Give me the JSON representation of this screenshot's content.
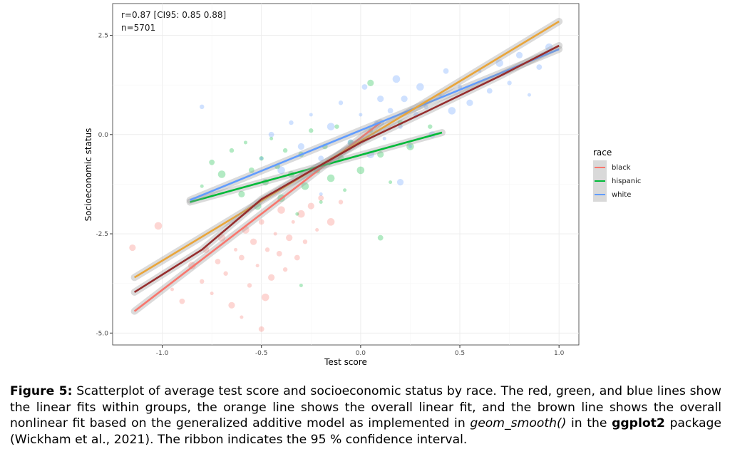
{
  "chart_data": {
    "type": "scatter",
    "xlabel": "Test score",
    "ylabel": "Socioeconomic status",
    "xlim": [
      -1.25,
      1.1
    ],
    "ylim": [
      -5.3,
      3.3
    ],
    "xticks": [
      -1.0,
      -0.5,
      0.0,
      0.5,
      1.0
    ],
    "xtick_labels": [
      "-1.0",
      "-0.5",
      "0.0",
      "0.5",
      "1.0"
    ],
    "yticks": [
      -5.0,
      -2.5,
      0.0,
      2.5
    ],
    "ytick_labels": [
      "-5.0",
      "-2.5",
      "0.0",
      "2.5"
    ],
    "grid": true,
    "annotation": [
      "r=0.87 [CI95: 0.85 0.88]",
      "n=5701"
    ],
    "legend": {
      "title": "race",
      "placement": "right",
      "entries": [
        "black",
        "hispanic",
        "white"
      ]
    },
    "series": [
      {
        "name": "black",
        "color": "#F8766D",
        "points": [
          [
            -0.95,
            -3.9
          ],
          [
            -0.9,
            -4.2
          ],
          [
            -0.85,
            -3.3
          ],
          [
            -0.8,
            -3.7
          ],
          [
            -0.78,
            -2.9
          ],
          [
            -0.75,
            -4.0
          ],
          [
            -0.72,
            -3.2
          ],
          [
            -0.7,
            -2.6
          ],
          [
            -0.68,
            -3.5
          ],
          [
            -0.65,
            -4.3
          ],
          [
            -0.63,
            -2.9
          ],
          [
            -0.6,
            -3.1
          ],
          [
            -0.58,
            -2.4
          ],
          [
            -0.56,
            -3.8
          ],
          [
            -0.54,
            -2.7
          ],
          [
            -0.52,
            -3.3
          ],
          [
            -0.5,
            -2.2
          ],
          [
            -0.48,
            -4.1
          ],
          [
            -0.47,
            -2.9
          ],
          [
            -0.45,
            -3.6
          ],
          [
            -0.43,
            -2.5
          ],
          [
            -0.41,
            -3.0
          ],
          [
            -0.4,
            -1.9
          ],
          [
            -0.38,
            -3.4
          ],
          [
            -0.36,
            -2.6
          ],
          [
            -0.34,
            -2.2
          ],
          [
            -0.32,
            -3.1
          ],
          [
            -0.3,
            -2.0
          ],
          [
            -0.28,
            -2.7
          ],
          [
            -0.25,
            -1.8
          ],
          [
            -0.22,
            -2.4
          ],
          [
            -0.2,
            -1.6
          ],
          [
            -0.15,
            -2.2
          ],
          [
            -0.1,
            -1.7
          ],
          [
            -1.15,
            -2.85
          ],
          [
            -0.6,
            -4.6
          ],
          [
            -0.5,
            -4.9
          ],
          [
            -1.02,
            -2.3
          ]
        ],
        "fit": [
          [
            -1.14,
            -4.45
          ],
          [
            0.1,
            0.3
          ]
        ]
      },
      {
        "name": "hispanic",
        "color": "#00BA38",
        "points": [
          [
            -0.8,
            -1.3
          ],
          [
            -0.75,
            -0.7
          ],
          [
            -0.7,
            -1.0
          ],
          [
            -0.65,
            -0.4
          ],
          [
            -0.6,
            -1.5
          ],
          [
            -0.58,
            -0.2
          ],
          [
            -0.55,
            -0.9
          ],
          [
            -0.52,
            -1.8
          ],
          [
            -0.5,
            -0.6
          ],
          [
            -0.48,
            -1.2
          ],
          [
            -0.45,
            -0.1
          ],
          [
            -0.42,
            -0.8
          ],
          [
            -0.4,
            -1.6
          ],
          [
            -0.38,
            -0.4
          ],
          [
            -0.35,
            -1.0
          ],
          [
            -0.32,
            -2.0
          ],
          [
            -0.3,
            -0.5
          ],
          [
            -0.28,
            -1.3
          ],
          [
            -0.25,
            0.1
          ],
          [
            -0.22,
            -0.9
          ],
          [
            -0.2,
            -1.7
          ],
          [
            -0.18,
            -0.3
          ],
          [
            -0.15,
            -1.1
          ],
          [
            -0.12,
            0.2
          ],
          [
            -0.1,
            -0.6
          ],
          [
            -0.08,
            -1.4
          ],
          [
            -0.05,
            -0.2
          ],
          [
            0.0,
            -0.9
          ],
          [
            0.05,
            0.1
          ],
          [
            0.1,
            -0.5
          ],
          [
            0.15,
            -1.2
          ],
          [
            0.2,
            0.3
          ],
          [
            0.25,
            -0.3
          ],
          [
            0.35,
            0.2
          ],
          [
            0.05,
            1.3
          ],
          [
            -0.3,
            -3.8
          ],
          [
            0.1,
            -2.6
          ]
        ],
        "fit": [
          [
            -0.86,
            -1.7
          ],
          [
            0.41,
            0.05
          ]
        ]
      },
      {
        "name": "white",
        "color": "#619CFF",
        "points": [
          [
            -0.5,
            -0.6
          ],
          [
            -0.45,
            0.0
          ],
          [
            -0.4,
            -0.9
          ],
          [
            -0.35,
            0.3
          ],
          [
            -0.3,
            -0.3
          ],
          [
            -0.25,
            0.5
          ],
          [
            -0.2,
            -0.6
          ],
          [
            -0.15,
            0.2
          ],
          [
            -0.1,
            0.8
          ],
          [
            -0.05,
            -0.2
          ],
          [
            0.0,
            0.5
          ],
          [
            0.02,
            1.2
          ],
          [
            0.05,
            -0.5
          ],
          [
            0.08,
            0.3
          ],
          [
            0.1,
            0.9
          ],
          [
            0.12,
            -0.1
          ],
          [
            0.15,
            0.6
          ],
          [
            0.18,
            1.4
          ],
          [
            0.2,
            0.2
          ],
          [
            0.22,
            0.9
          ],
          [
            0.25,
            -0.3
          ],
          [
            0.28,
            0.5
          ],
          [
            0.3,
            1.2
          ],
          [
            0.33,
            0.7
          ],
          [
            0.36,
            0.0
          ],
          [
            0.4,
            1.0
          ],
          [
            0.43,
            1.6
          ],
          [
            0.46,
            0.6
          ],
          [
            0.5,
            1.2
          ],
          [
            0.55,
            0.8
          ],
          [
            0.6,
            1.6
          ],
          [
            0.65,
            1.1
          ],
          [
            0.7,
            1.8
          ],
          [
            0.75,
            1.3
          ],
          [
            0.8,
            2.0
          ],
          [
            0.85,
            1.0
          ],
          [
            0.9,
            1.7
          ],
          [
            0.95,
            2.2
          ],
          [
            -0.8,
            0.7
          ],
          [
            0.2,
            -1.2
          ],
          [
            -0.2,
            -1.5
          ]
        ],
        "fit": [
          [
            -0.86,
            -1.65
          ],
          [
            1.0,
            2.15
          ]
        ]
      }
    ],
    "overall_linear_fit": {
      "color": "#E9A53A",
      "line": [
        [
          -1.14,
          -3.6
        ],
        [
          1.0,
          2.85
        ]
      ]
    },
    "overall_gam_fit": {
      "color": "#962D2D",
      "line": [
        [
          -1.14,
          -3.97
        ],
        [
          -0.8,
          -2.9
        ],
        [
          -0.5,
          -1.63
        ],
        [
          -0.24,
          -0.88
        ],
        [
          0.0,
          -0.2
        ],
        [
          0.34,
          0.6
        ],
        [
          0.7,
          1.47
        ],
        [
          1.0,
          2.24
        ]
      ]
    }
  },
  "caption": {
    "label": "Figure 5:",
    "text1": " Scatterplot of average test score and socioeconomic status by race. The red, green, and blue lines show the linear fits within groups, the orange line shows the overall linear fit, and the brown line shows the overall nonlinear fit based on the generalized additive model as implemented in ",
    "code": "geom_smooth()",
    "text2": " in the ",
    "pkg": "ggplot2",
    "text3": " package (Wickham et al., 2021). The ribbon indicates the 95 % confidence interval."
  }
}
